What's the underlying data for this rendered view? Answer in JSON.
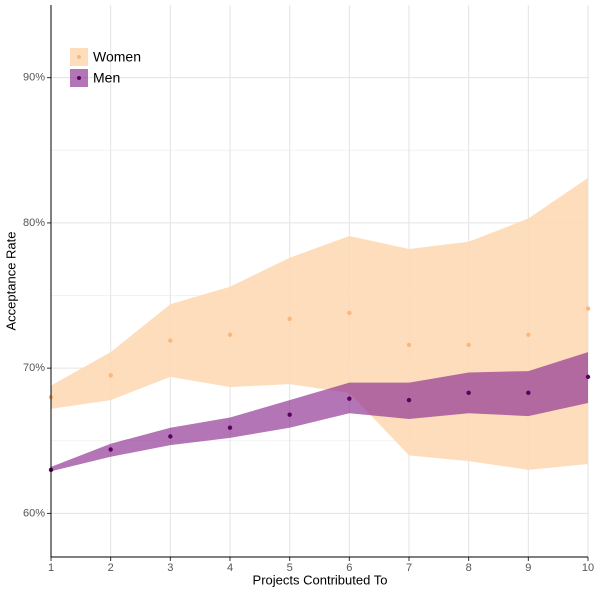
{
  "chart_data": {
    "type": "scatter-band",
    "xlabel": "Projects Contributed To",
    "ylabel": "Acceptance Rate",
    "x": [
      1,
      2,
      3,
      4,
      5,
      6,
      7,
      8,
      9,
      10
    ],
    "xlim": [
      1,
      10
    ],
    "xticks": [
      1,
      2,
      3,
      4,
      5,
      6,
      7,
      8,
      9,
      10
    ],
    "ylim": [
      57,
      95
    ],
    "yticks": [
      {
        "value": 60,
        "label": "60%"
      },
      {
        "value": 70,
        "label": "70%"
      },
      {
        "value": 80,
        "label": "80%"
      },
      {
        "value": 90,
        "label": "90%"
      }
    ],
    "yminor": [
      65,
      75,
      85
    ],
    "grid": true,
    "legend": "top-left",
    "series": [
      {
        "name": "Women",
        "color": "#fdb77a",
        "band_color": "#fdd9b5",
        "band_opacity": 0.9,
        "values": [
          68.0,
          69.5,
          71.9,
          72.3,
          73.4,
          73.8,
          71.6,
          71.6,
          72.3,
          74.1
        ],
        "lower": [
          67.2,
          67.8,
          69.4,
          68.7,
          68.9,
          68.3,
          64.0,
          63.6,
          63.0,
          63.4
        ],
        "upper": [
          68.8,
          71.1,
          74.4,
          75.6,
          77.6,
          79.1,
          78.2,
          78.7,
          80.3,
          83.1
        ]
      },
      {
        "name": "Men",
        "color": "#5c0060",
        "band_color": "#8b2b8f",
        "band_opacity": 0.65,
        "values": [
          63.0,
          64.4,
          65.3,
          65.9,
          66.8,
          67.9,
          67.8,
          68.3,
          68.3,
          69.4
        ],
        "lower": [
          62.9,
          63.9,
          64.7,
          65.2,
          65.9,
          66.9,
          66.5,
          66.9,
          66.7,
          67.6
        ],
        "upper": [
          63.2,
          64.8,
          65.9,
          66.6,
          67.8,
          69.0,
          69.0,
          69.7,
          69.8,
          71.1
        ]
      }
    ]
  }
}
